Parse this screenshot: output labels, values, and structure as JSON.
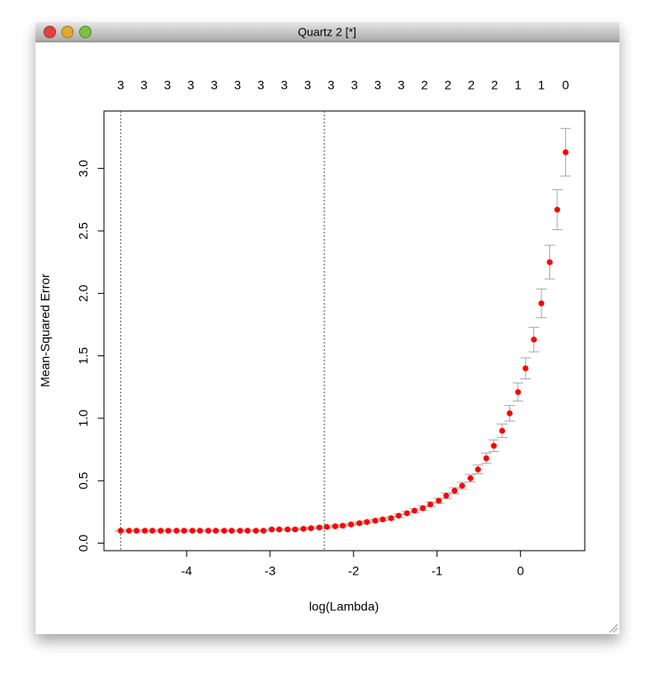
{
  "window_title": "Quartz 2 [*]",
  "chart_data": {
    "type": "errorbar",
    "xlabel": "log(Lambda)",
    "ylabel": "Mean-Squared Error",
    "color": "#ff0000",
    "error_color": "#a9a9a9",
    "vline_color": "#555555",
    "x": [
      -4.79,
      -4.69,
      -4.6,
      -4.5,
      -4.41,
      -4.31,
      -4.22,
      -4.12,
      -4.03,
      -3.93,
      -3.84,
      -3.74,
      -3.65,
      -3.55,
      -3.46,
      -3.36,
      -3.27,
      -3.17,
      -3.08,
      -2.98,
      -2.89,
      -2.79,
      -2.7,
      -2.6,
      -2.51,
      -2.41,
      -2.32,
      -2.22,
      -2.13,
      -2.03,
      -1.93,
      -1.84,
      -1.74,
      -1.65,
      -1.55,
      -1.46,
      -1.36,
      -1.27,
      -1.17,
      -1.08,
      -0.98,
      -0.89,
      -0.79,
      -0.7,
      -0.6,
      -0.51,
      -0.41,
      -0.32,
      -0.22,
      -0.13,
      -0.03,
      0.06,
      0.16,
      0.25,
      0.35,
      0.44,
      0.54
    ],
    "values": [
      0.1,
      0.1,
      0.1,
      0.1,
      0.1,
      0.1,
      0.1,
      0.1,
      0.1,
      0.1,
      0.1,
      0.1,
      0.1,
      0.1,
      0.1,
      0.1,
      0.1,
      0.1,
      0.1,
      0.11,
      0.11,
      0.11,
      0.11,
      0.115,
      0.12,
      0.125,
      0.13,
      0.135,
      0.14,
      0.15,
      0.16,
      0.17,
      0.18,
      0.19,
      0.2,
      0.22,
      0.24,
      0.26,
      0.28,
      0.31,
      0.34,
      0.38,
      0.42,
      0.46,
      0.52,
      0.59,
      0.68,
      0.78,
      0.9,
      1.04,
      1.21,
      1.4,
      1.63,
      1.92,
      2.25,
      2.67,
      3.13
    ],
    "errors": [
      0.006,
      0.006,
      0.006,
      0.006,
      0.006,
      0.006,
      0.006,
      0.006,
      0.006,
      0.006,
      0.006,
      0.006,
      0.006,
      0.006,
      0.006,
      0.006,
      0.006,
      0.006,
      0.006,
      0.007,
      0.007,
      0.007,
      0.007,
      0.007,
      0.007,
      0.008,
      0.008,
      0.008,
      0.008,
      0.009,
      0.01,
      0.01,
      0.011,
      0.011,
      0.012,
      0.013,
      0.014,
      0.016,
      0.017,
      0.019,
      0.02,
      0.023,
      0.025,
      0.028,
      0.031,
      0.035,
      0.041,
      0.047,
      0.054,
      0.062,
      0.073,
      0.084,
      0.098,
      0.115,
      0.135,
      0.16,
      0.19
    ],
    "vlines": [
      -4.79,
      -2.35
    ],
    "nzero": [
      3,
      3,
      3,
      3,
      3,
      3,
      3,
      3,
      3,
      3,
      3,
      3,
      3,
      2,
      2,
      2,
      2,
      1,
      1,
      0
    ],
    "nzero_x": [
      -4.79,
      -4.51,
      -4.23,
      -3.95,
      -3.67,
      -3.39,
      -3.11,
      -2.83,
      -2.55,
      -2.27,
      -1.99,
      -1.71,
      -1.43,
      -1.15,
      -0.87,
      -0.59,
      -0.31,
      -0.03,
      0.25,
      0.54
    ],
    "xlim": [
      -4.99,
      0.77
    ],
    "xticks": [
      -4,
      -3,
      -2,
      -1,
      0
    ],
    "ylim": [
      -0.06,
      3.46
    ],
    "yticks": [
      {
        "value": 0,
        "label": "0.0"
      },
      {
        "value": 0.5,
        "label": "0.5"
      },
      {
        "value": 1,
        "label": "1.0"
      },
      {
        "value": 1.5,
        "label": "1.5"
      },
      {
        "value": 2,
        "label": "2.0"
      },
      {
        "value": 2.5,
        "label": "2.5"
      },
      {
        "value": 3,
        "label": "3.0"
      }
    ]
  }
}
